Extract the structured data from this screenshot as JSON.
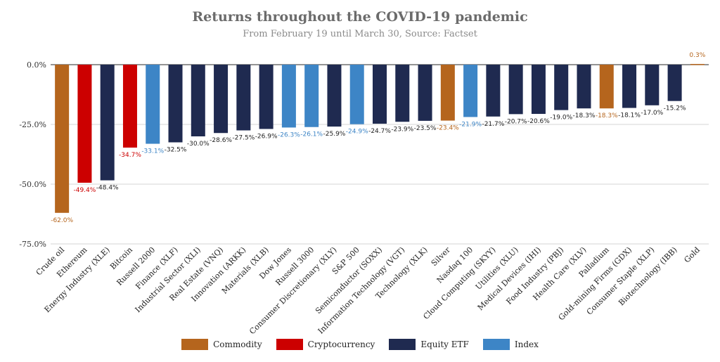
{
  "chart_data": {
    "type": "bar",
    "title": "Returns throughout the COVID-19 pandemic",
    "subtitle": "From February 19 until March 30, Source: Factset",
    "ylim": [
      -75,
      0
    ],
    "yticks": [
      0,
      -25,
      -50,
      -75
    ],
    "ytick_labels": [
      "0.0%",
      "-25.0%",
      "-50.0%",
      "-75.0%"
    ],
    "grid": true,
    "legend_position": "bottom",
    "colors": {
      "Commodity": "#b5651d",
      "Cryptocurrency": "#cc0000",
      "Equity ETF": "#1f2a50",
      "Index": "#3d85c6"
    },
    "categories": [
      "Crude oil",
      "Ethereum",
      "Energy Industry (XLE)",
      "Bitcoin",
      "Russell 2000",
      "Finance (XLF)",
      "Industrial Sector (XLI)",
      "Real Estate (VNQ)",
      "Innovation (ARKK)",
      "Materials (XLB)",
      "Dow Jones",
      "Russell 3000",
      "Consumer Discretionary (XLY)",
      "S&P 500",
      "Semiconductor (SOXX)",
      "Information Technology (VGT)",
      "Technology (XLK)",
      "Silver",
      "Nasdaq 100",
      "Cloud Computing (SKYY)",
      "Utilities (XLU)",
      "Medical Devices (IHI)",
      "Food Industry (PBJ)",
      "Health Care (XLV)",
      "Palladium",
      "Gold-mining Firms (GDX)",
      "Consumer Staple (XLP)",
      "Biotechnology (IBB)",
      "Gold"
    ],
    "values": [
      -62.0,
      -49.4,
      -48.4,
      -34.7,
      -33.1,
      -32.5,
      -30.0,
      -28.6,
      -27.5,
      -26.9,
      -26.3,
      -26.1,
      -25.9,
      -24.9,
      -24.7,
      -23.9,
      -23.5,
      -23.4,
      -21.9,
      -21.7,
      -20.7,
      -20.6,
      -19.0,
      -18.3,
      -18.3,
      -18.1,
      -17.0,
      -15.2,
      0.3
    ],
    "value_labels": [
      "-62.0%",
      "-49.4%",
      "-48.4%",
      "-34.7%",
      "-33.1%",
      "-32.5%",
      "-30.0%",
      "-28.6%",
      "-27.5%",
      "-26.9%",
      "-26.3%",
      "-26.1%",
      "-25.9%",
      "-24.9%",
      "-24.7%",
      "-23.9%",
      "-23.5%",
      "-23.4%",
      "-21.9%",
      "-21.7%",
      "-20.7%",
      "-20.6%",
      "-19.0%",
      "-18.3%",
      "-18.3%",
      "-18.1%",
      "-17.0%",
      "-15.2%",
      "0.3%"
    ],
    "groups": [
      "Commodity",
      "Cryptocurrency",
      "Equity ETF",
      "Cryptocurrency",
      "Index",
      "Equity ETF",
      "Equity ETF",
      "Equity ETF",
      "Equity ETF",
      "Equity ETF",
      "Index",
      "Index",
      "Equity ETF",
      "Index",
      "Equity ETF",
      "Equity ETF",
      "Equity ETF",
      "Commodity",
      "Index",
      "Equity ETF",
      "Equity ETF",
      "Equity ETF",
      "Equity ETF",
      "Equity ETF",
      "Commodity",
      "Equity ETF",
      "Equity ETF",
      "Equity ETF",
      "Commodity"
    ],
    "legend": [
      "Commodity",
      "Cryptocurrency",
      "Equity ETF",
      "Index"
    ]
  }
}
